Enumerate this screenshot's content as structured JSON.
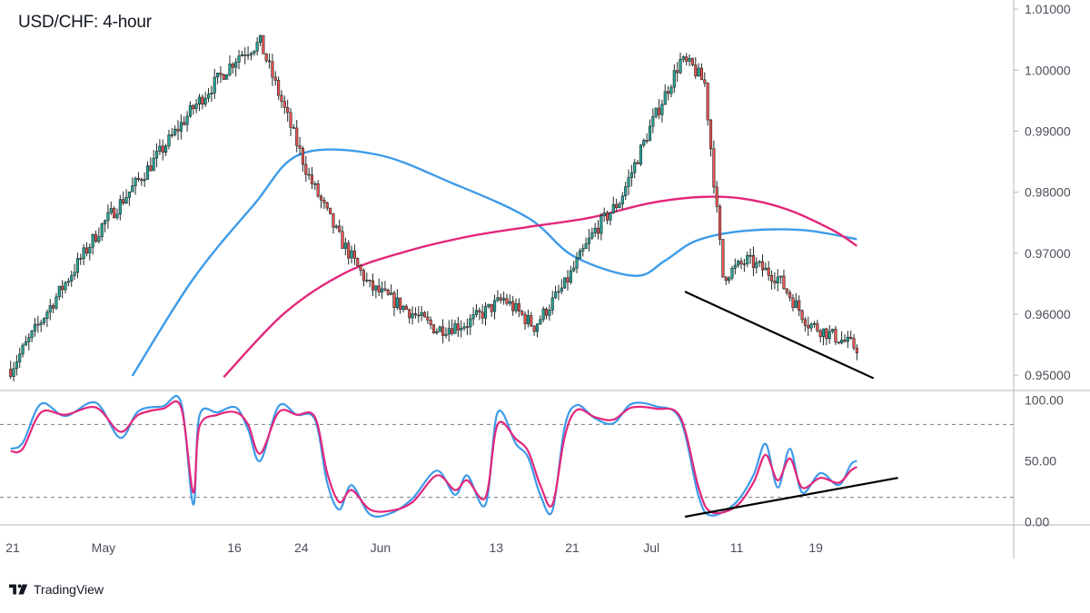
{
  "header": {
    "title": "USD/CHF: 4-hour"
  },
  "branding": {
    "logo_icon": "tradingview-logo-icon",
    "name": "TradingView"
  },
  "colors": {
    "candle_up": "#26a69a",
    "candle_down": "#ef5350",
    "candle_body": "#1e2a28",
    "ma_fast": "#3d9be9",
    "ma_slow": "#e3267b",
    "stoch_k": "#3d9be9",
    "stoch_d": "#e3267b",
    "trendline": "#000000",
    "grid": "#d1d4dc",
    "axis_text": "#4c4f5a"
  },
  "chart_data": [
    {
      "type": "candlestick",
      "title": "USD/CHF: 4-hour",
      "ylim": [
        0.9475,
        1.0115
      ],
      "y_ticks": [
        "1.01000",
        "1.00000",
        "0.99000",
        "0.98000",
        "0.97000",
        "0.96000",
        "0.95000"
      ],
      "x_ticks": [
        "21",
        "May",
        "16",
        "24",
        "Jun",
        "13",
        "21",
        "Jul",
        "11",
        "19"
      ],
      "price_path_approx": [
        [
          0,
          0.951
        ],
        [
          12,
          0.9605
        ],
        [
          30,
          0.9745
        ],
        [
          45,
          0.9838
        ],
        [
          60,
          0.9938
        ],
        [
          75,
          1.0025
        ],
        [
          82,
          1.0045
        ],
        [
          90,
          0.9935
        ],
        [
          98,
          0.9825
        ],
        [
          108,
          0.9725
        ],
        [
          118,
          0.9645
        ],
        [
          128,
          0.9615
        ],
        [
          140,
          0.9575
        ],
        [
          150,
          0.9585
        ],
        [
          162,
          0.9625
        ],
        [
          172,
          0.958
        ],
        [
          182,
          0.9648
        ],
        [
          192,
          0.9738
        ],
        [
          200,
          0.9785
        ],
        [
          210,
          0.9905
        ],
        [
          220,
          1.0015
        ],
        [
          224,
          1.0005
        ],
        [
          228,
          0.9978
        ],
        [
          234,
          0.9662
        ],
        [
          242,
          0.9688
        ],
        [
          252,
          0.966
        ],
        [
          262,
          0.9585
        ],
        [
          270,
          0.9565
        ],
        [
          278,
          0.9545
        ]
      ],
      "series": [
        {
          "name": "",
          "type": "moving_average",
          "color": "#3d9be9",
          "values": [
            [
              40,
              0.9499
            ],
            [
              60,
              0.9658
            ],
            [
              80,
              0.978
            ],
            [
              95,
              0.9862
            ],
            [
              120,
              0.9862
            ],
            [
              145,
              0.9815
            ],
            [
              170,
              0.9758
            ],
            [
              185,
              0.9695
            ],
            [
              205,
              0.9663
            ],
            [
              215,
              0.9688
            ],
            [
              225,
              0.972
            ],
            [
              240,
              0.9736
            ],
            [
              260,
              0.9738
            ],
            [
              278,
              0.9723
            ]
          ]
        },
        {
          "name": "",
          "type": "moving_average",
          "color": "#e3267b",
          "values": [
            [
              70,
              0.9497
            ],
            [
              90,
              0.9602
            ],
            [
              110,
              0.9668
            ],
            [
              130,
              0.9703
            ],
            [
              150,
              0.9727
            ],
            [
              170,
              0.9743
            ],
            [
              190,
              0.9758
            ],
            [
              210,
              0.9782
            ],
            [
              226,
              0.9792
            ],
            [
              240,
              0.979
            ],
            [
              255,
              0.9772
            ],
            [
              270,
              0.9738
            ],
            [
              278,
              0.9712
            ]
          ]
        }
      ],
      "annotations": [
        {
          "type": "trendline",
          "label": "",
          "points": [
            [
              222,
              0.9637
            ],
            [
              284,
              0.9495
            ]
          ]
        }
      ]
    },
    {
      "type": "line",
      "title": "",
      "ylim": [
        -2,
        108
      ],
      "y_ticks": [
        "100.00",
        "50.00",
        "0.00"
      ],
      "levels": [
        80,
        20
      ],
      "series": [
        {
          "name": "",
          "color": "#3d9be9",
          "values": [
            [
              0,
              60
            ],
            [
              4,
              65
            ],
            [
              10,
              97
            ],
            [
              18,
              87
            ],
            [
              28,
              98
            ],
            [
              36,
              69
            ],
            [
              42,
              91
            ],
            [
              50,
              95
            ],
            [
              56,
              98
            ],
            [
              60,
              14
            ],
            [
              62,
              87
            ],
            [
              68,
              90
            ],
            [
              74,
              94
            ],
            [
              78,
              76
            ],
            [
              82,
              50
            ],
            [
              88,
              95
            ],
            [
              94,
              88
            ],
            [
              100,
              84
            ],
            [
              104,
              32
            ],
            [
              108,
              10
            ],
            [
              112,
              30
            ],
            [
              118,
              6
            ],
            [
              125,
              7
            ],
            [
              132,
              19
            ],
            [
              140,
              42
            ],
            [
              146,
              22
            ],
            [
              150,
              38
            ],
            [
              156,
              14
            ],
            [
              160,
              90
            ],
            [
              166,
              64
            ],
            [
              170,
              53
            ],
            [
              174,
              22
            ],
            [
              178,
              9
            ],
            [
              182,
              78
            ],
            [
              186,
              96
            ],
            [
              192,
              85
            ],
            [
              198,
              81
            ],
            [
              204,
              97
            ],
            [
              212,
              95
            ],
            [
              220,
              84
            ],
            [
              226,
              21
            ],
            [
              230,
              5
            ],
            [
              238,
              15
            ],
            [
              244,
              38
            ],
            [
              248,
              64
            ],
            [
              252,
              28
            ],
            [
              256,
              60
            ],
            [
              260,
              24
            ],
            [
              266,
              40
            ],
            [
              272,
              30
            ],
            [
              276,
              47
            ],
            [
              278,
              50
            ]
          ]
        },
        {
          "name": "",
          "color": "#e3267b",
          "values": [
            [
              0,
              58
            ],
            [
              4,
              60
            ],
            [
              10,
              90
            ],
            [
              18,
              88
            ],
            [
              28,
              94
            ],
            [
              36,
              74
            ],
            [
              42,
              88
            ],
            [
              50,
              93
            ],
            [
              56,
              94
            ],
            [
              60,
              24
            ],
            [
              62,
              78
            ],
            [
              68,
              88
            ],
            [
              74,
              90
            ],
            [
              78,
              80
            ],
            [
              82,
              56
            ],
            [
              88,
              90
            ],
            [
              94,
              88
            ],
            [
              100,
              86
            ],
            [
              104,
              40
            ],
            [
              108,
              16
            ],
            [
              112,
              26
            ],
            [
              118,
              10
            ],
            [
              125,
              9
            ],
            [
              132,
              16
            ],
            [
              140,
              38
            ],
            [
              146,
              26
            ],
            [
              150,
              34
            ],
            [
              156,
              20
            ],
            [
              160,
              80
            ],
            [
              166,
              68
            ],
            [
              170,
              58
            ],
            [
              174,
              30
            ],
            [
              178,
              14
            ],
            [
              182,
              70
            ],
            [
              186,
              92
            ],
            [
              192,
              86
            ],
            [
              198,
              84
            ],
            [
              204,
              94
            ],
            [
              212,
              93
            ],
            [
              220,
              86
            ],
            [
              226,
              28
            ],
            [
              230,
              8
            ],
            [
              238,
              12
            ],
            [
              244,
              32
            ],
            [
              248,
              55
            ],
            [
              252,
              34
            ],
            [
              256,
              52
            ],
            [
              260,
              28
            ],
            [
              266,
              36
            ],
            [
              272,
              32
            ],
            [
              276,
              42
            ],
            [
              278,
              45
            ]
          ]
        }
      ],
      "annotations": [
        {
          "type": "trendline",
          "label": "",
          "points": [
            [
              222,
              4
            ],
            [
              292,
              36
            ]
          ]
        }
      ]
    }
  ]
}
